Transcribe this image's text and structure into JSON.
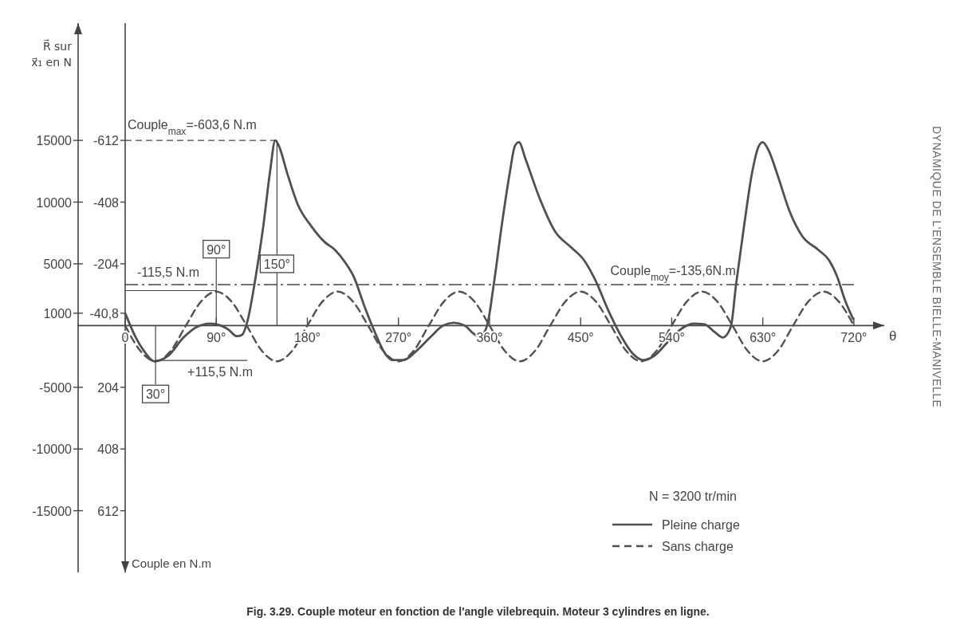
{
  "chart_data": {
    "type": "line",
    "title": "Fig. 3.29. Couple moteur en fonction de l'angle vilebrequin. Moteur 3 cylindres en ligne.",
    "xlabel": "θ",
    "ylabel": "R⃗ sur x⃗₁ en N",
    "y2label": "Couple en N.m",
    "legend_title": "N = 3200 tr/min",
    "legend": "bottom right",
    "xlim": [
      0,
      750
    ],
    "xticks": [
      0,
      {
        "value": 90,
        "label": "90°"
      },
      {
        "value": 180,
        "label": "180°"
      },
      {
        "value": 270,
        "label": "270°"
      },
      {
        "value": 360,
        "label": "360°"
      },
      {
        "value": 450,
        "label": "450°"
      },
      {
        "value": 540,
        "label": "540°"
      },
      {
        "value": 630,
        "label": "630°"
      },
      {
        "value": 720,
        "label": "720°"
      }
    ],
    "ylim": [
      -20000,
      24500
    ],
    "yticks": [
      15000,
      10000,
      5000,
      1000,
      -5000,
      -10000,
      -15000
    ],
    "y2lim": [
      816,
      -999.6
    ],
    "y2ticks": [
      -612,
      -408,
      -204,
      {
        "value": -40.8,
        "label": "-40,8"
      },
      204,
      408,
      612
    ],
    "series": [
      {
        "name": "Pleine charge",
        "color": "#505050",
        "line_style": "solid",
        "x": [
          0,
          10.5,
          18.4,
          29,
          42,
          57.7,
          70.9,
          84,
          94.5,
          102,
          110,
          115.5,
          120.7,
          128.6,
          136.5,
          143,
          148.3,
          152,
          160,
          170.6,
          183.7,
          196.9,
          207.3,
          217.8,
          225.7,
          236.2,
          246.7,
          256.7,
          264.6,
          275,
          288,
          301.2,
          314.3,
          324.8,
          335.3,
          345.8,
          351,
          357.6,
          364.2,
          372,
          380,
          385,
          389,
          395.7,
          408.9,
          424.6,
          440.4,
          453.6,
          464,
          477.6,
          490.8,
          501.3,
          511.8,
          522.2,
          535.4,
          548.5,
          561.6,
          572,
          582.6,
          590.5,
          598.4,
          603.6,
          611.5,
          619.4,
          626,
          630,
          635,
          645.6,
          656,
          669.3,
          685,
          695.6,
          703.4,
          711.3,
          719.2
        ],
        "values": [
          1000,
          -970,
          -2040,
          -2900,
          -2480,
          -970,
          -110,
          150,
          0,
          -320,
          -860,
          -750,
          320,
          3770,
          8070,
          12370,
          15000,
          14530,
          12370,
          9790,
          8070,
          6780,
          6130,
          5060,
          3980,
          1610,
          -540,
          -2260,
          -2800,
          -2800,
          -2040,
          -970,
          0,
          220,
          0,
          -750,
          -860,
          0,
          3340,
          8070,
          12370,
          14530,
          14850,
          13450,
          10440,
          7640,
          6350,
          5270,
          3770,
          1180,
          -970,
          -2260,
          -2800,
          -2480,
          -1400,
          -320,
          150,
          110,
          -540,
          -970,
          -110,
          3340,
          8070,
          12370,
          14530,
          14850,
          14310,
          11940,
          9360,
          7210,
          6130,
          5270,
          3980,
          2040,
          540
        ]
      },
      {
        "name": "Sans charge",
        "color": "#505050",
        "line_style": "dashed",
        "x": [
          0,
          15,
          30,
          45,
          60,
          75,
          90,
          105,
          120,
          135,
          150,
          165,
          180,
          195,
          210,
          225,
          240,
          255,
          270,
          285,
          300,
          315,
          330,
          345,
          360,
          375,
          390,
          405,
          420,
          435,
          450,
          465,
          480,
          495,
          510,
          525,
          540,
          555,
          570,
          585,
          600,
          615,
          630,
          645,
          660,
          675,
          690,
          705,
          720
        ],
        "values": [
          0,
          -2050,
          -2900,
          -2050,
          0,
          1950,
          2750,
          1950,
          0,
          -2050,
          -2900,
          -2050,
          0,
          1950,
          2750,
          1950,
          0,
          -2050,
          -2900,
          -2050,
          0,
          1950,
          2750,
          1950,
          0,
          -2050,
          -2900,
          -2050,
          0,
          1950,
          2750,
          1950,
          0,
          -2050,
          -2900,
          -2050,
          0,
          1950,
          2750,
          1950,
          0,
          -2050,
          -2900,
          -2050,
          0,
          1950,
          2750,
          1950,
          0
        ]
      }
    ],
    "ref_lines": [
      {
        "axis": "y2",
        "value": -135.6,
        "label": "Couple$_{moy}$=-135,6N.m"
      }
    ],
    "annotations": [
      {
        "text": "Couple$_{max}$=-603,6 N.m",
        "x": 150,
        "y": 15000
      },
      {
        "text": "150°",
        "x": 150,
        "y": 5000
      },
      {
        "text": "90°",
        "x": 90,
        "y": 2831
      },
      {
        "text": "30°",
        "x": 30,
        "y": -2831
      },
      {
        "text": "-115,5 N.m",
        "x": 90,
        "y": 2831
      },
      {
        "text": "+115,5 N.m",
        "x": 30,
        "y": -2831
      },
      "DYNAMIQUE DE L'ENSEMBLE BIELLE-MANIVELLE"
    ]
  }
}
